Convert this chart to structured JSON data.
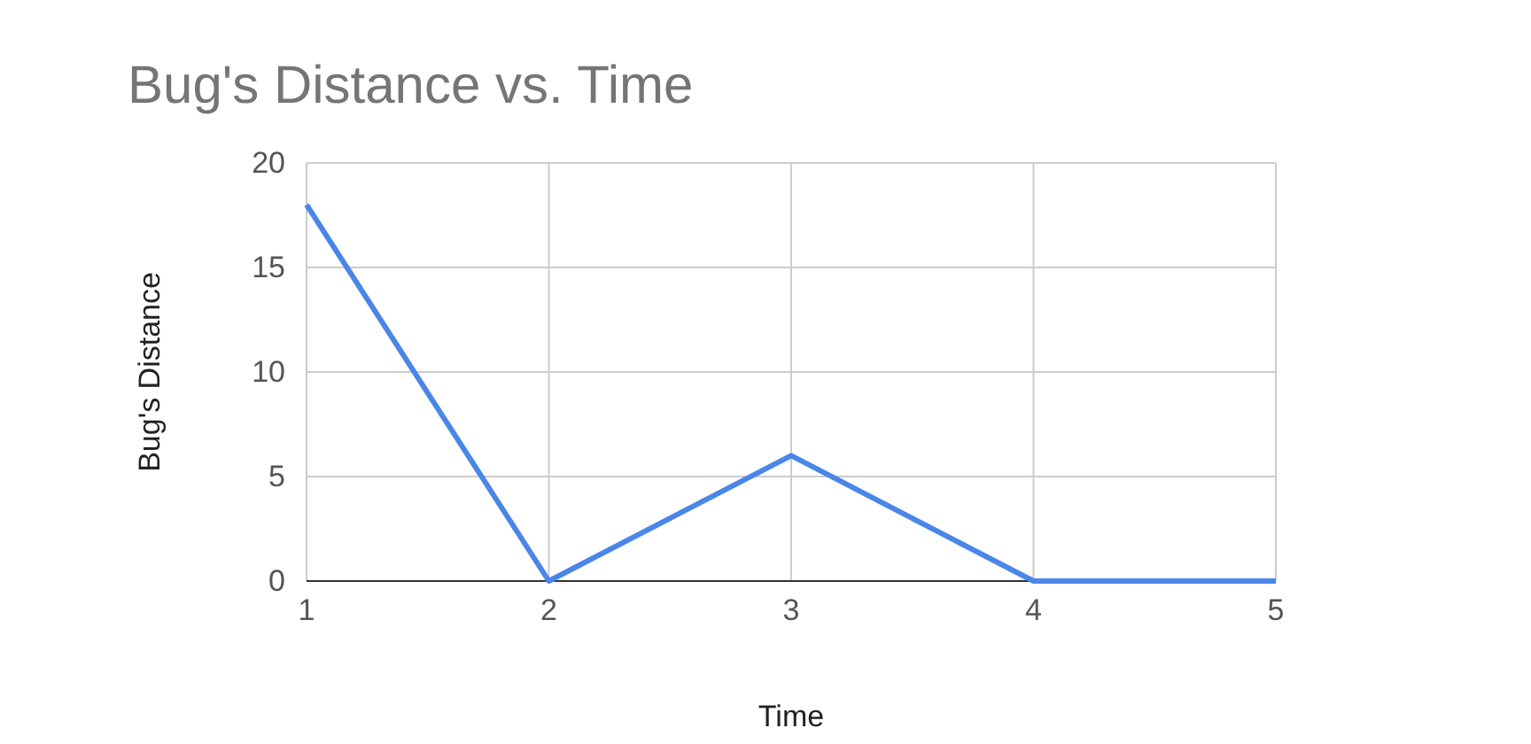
{
  "chart_data": {
    "type": "line",
    "title": "Bug's Distance vs. Time",
    "xlabel": "Time",
    "ylabel": "Bug's Distance",
    "x": [
      1,
      2,
      3,
      4,
      5
    ],
    "series": [
      {
        "color": "#4a86e8",
        "values": [
          18,
          0,
          6,
          0,
          0
        ]
      }
    ],
    "xlim": [
      1,
      5
    ],
    "xticks": [
      1,
      2,
      3,
      4,
      5
    ],
    "ylim": [
      0,
      20
    ],
    "yticks": [
      0,
      5,
      10,
      15,
      20
    ],
    "grid": true,
    "marker": "none",
    "line_style": "solid"
  }
}
